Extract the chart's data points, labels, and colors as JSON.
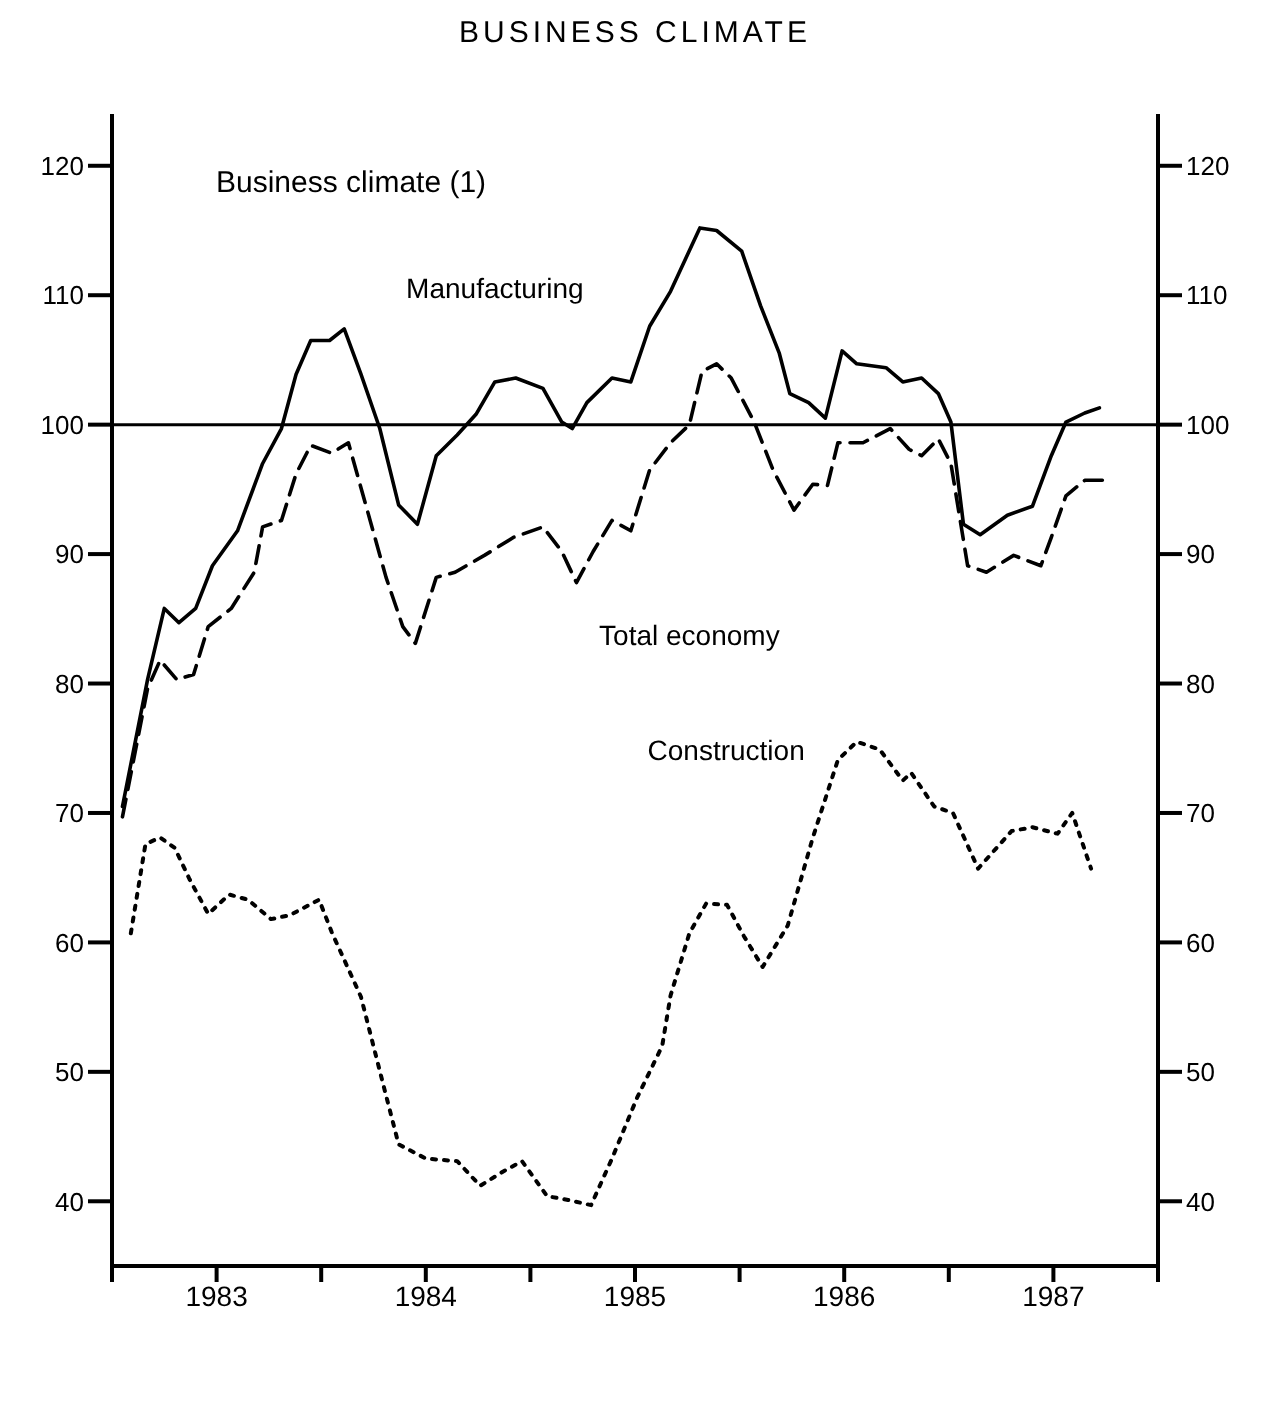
{
  "chart_data": {
    "type": "line",
    "title": "BUSINESS CLIMATE",
    "subtitle": "Business climate (1)",
    "xlim": [
      1983,
      1988
    ],
    "xticks": [
      {
        "value": 1983,
        "label": null
      },
      {
        "value": 1983.5,
        "label": "1983"
      },
      {
        "value": 1984,
        "label": null
      },
      {
        "value": 1984.5,
        "label": "1984"
      },
      {
        "value": 1985,
        "label": null
      },
      {
        "value": 1985.5,
        "label": "1985"
      },
      {
        "value": 1986,
        "label": null
      },
      {
        "value": 1986.5,
        "label": "1986"
      },
      {
        "value": 1987,
        "label": null
      },
      {
        "value": 1987.5,
        "label": "1987"
      },
      {
        "value": 1988,
        "label": null
      }
    ],
    "ylim": [
      35,
      124
    ],
    "yticks": [
      40,
      50,
      60,
      70,
      80,
      90,
      100,
      110,
      120
    ],
    "y2lim": [
      35,
      124
    ],
    "y2ticks": [
      40,
      50,
      60,
      70,
      80,
      90,
      100,
      110,
      120
    ],
    "grid": false,
    "marker": "none",
    "ref_lines": [
      {
        "axis": "y",
        "value": 100,
        "color": "#000000",
        "line_style": "solid"
      }
    ],
    "series": [
      {
        "name": "Manufacturing",
        "color": "#000000",
        "line_style": "solid",
        "x": [
          1983.05,
          1983.17,
          1983.25,
          1983.32,
          1983.4,
          1983.48,
          1983.6,
          1983.72,
          1983.81,
          1983.88,
          1983.95,
          1984.04,
          1984.11,
          1984.19,
          1984.28,
          1984.37,
          1984.46,
          1984.55,
          1984.65,
          1984.74,
          1984.83,
          1984.93,
          1985.06,
          1985.15,
          1985.2,
          1985.27,
          1985.39,
          1985.48,
          1985.57,
          1985.67,
          1985.81,
          1985.89,
          1986.01,
          1986.1,
          1986.19,
          1986.24,
          1986.33,
          1986.41,
          1986.49,
          1986.56,
          1986.7,
          1986.78,
          1986.87,
          1986.95,
          1987.01,
          1987.07,
          1987.15,
          1987.28,
          1987.4,
          1987.49,
          1987.56,
          1987.65,
          1987.72
        ],
        "values": [
          70.5,
          80.3,
          85.8,
          84.7,
          85.8,
          89.1,
          91.8,
          97.0,
          99.7,
          103.9,
          106.5,
          106.5,
          107.4,
          103.9,
          99.7,
          93.8,
          92.3,
          97.6,
          99.2,
          100.8,
          103.3,
          103.6,
          102.8,
          100.2,
          99.7,
          101.7,
          103.6,
          103.3,
          107.6,
          110.3,
          115.2,
          115.0,
          113.4,
          109.2,
          105.5,
          102.4,
          101.7,
          100.5,
          105.7,
          104.7,
          104.4,
          103.3,
          103.6,
          102.4,
          100.2,
          92.3,
          91.5,
          93.0,
          93.7,
          97.6,
          100.2,
          100.9,
          101.3
        ]
      },
      {
        "name": "Total economy",
        "color": "#000000",
        "line_style": "dashed",
        "x": [
          1983.05,
          1983.17,
          1983.23,
          1983.31,
          1983.39,
          1983.46,
          1983.57,
          1983.68,
          1983.72,
          1983.81,
          1983.88,
          1983.95,
          1984.05,
          1984.13,
          1984.22,
          1984.31,
          1984.39,
          1984.45,
          1984.55,
          1984.64,
          1984.78,
          1984.92,
          1985.06,
          1985.15,
          1985.22,
          1985.3,
          1985.39,
          1985.48,
          1985.57,
          1985.67,
          1985.76,
          1985.82,
          1985.89,
          1985.96,
          1986.07,
          1986.16,
          1986.26,
          1986.35,
          1986.42,
          1986.47,
          1986.59,
          1986.72,
          1986.81,
          1986.87,
          1986.95,
          1987.01,
          1987.09,
          1987.18,
          1987.31,
          1987.44,
          1987.49,
          1987.56,
          1987.65,
          1987.74
        ],
        "values": [
          69.7,
          79.6,
          81.8,
          80.3,
          80.7,
          84.4,
          85.8,
          88.6,
          92.1,
          92.6,
          96.2,
          98.4,
          97.8,
          98.6,
          93.4,
          88.2,
          84.4,
          83.1,
          88.2,
          88.6,
          89.9,
          91.3,
          92.1,
          90.2,
          87.8,
          90.2,
          92.6,
          91.8,
          96.5,
          98.6,
          100.0,
          104.1,
          104.7,
          103.6,
          100.2,
          96.5,
          93.4,
          95.4,
          95.3,
          98.6,
          98.6,
          99.7,
          98.1,
          97.6,
          98.9,
          97.0,
          89.1,
          88.6,
          89.9,
          89.1,
          91.3,
          94.5,
          95.7,
          95.7
        ]
      },
      {
        "name": "Construction",
        "color": "#000000",
        "line_style": "dotted",
        "x": [
          1983.09,
          1983.16,
          1983.23,
          1983.3,
          1983.37,
          1983.46,
          1983.56,
          1983.65,
          1983.76,
          1983.85,
          1983.99,
          1984.05,
          1984.19,
          1984.3,
          1984.37,
          1984.5,
          1984.65,
          1984.76,
          1984.87,
          1984.96,
          1985.08,
          1985.18,
          1985.29,
          1985.39,
          1985.51,
          1985.63,
          1985.67,
          1985.76,
          1985.84,
          1985.94,
          1986.02,
          1986.11,
          1986.23,
          1986.35,
          1986.47,
          1986.56,
          1986.67,
          1986.78,
          1986.82,
          1986.93,
          1987.02,
          1987.14,
          1987.3,
          1987.4,
          1987.52,
          1987.59,
          1987.68
        ],
        "values": [
          60.7,
          67.6,
          68.1,
          67.3,
          64.9,
          62.2,
          63.7,
          63.3,
          61.8,
          62.1,
          63.3,
          60.8,
          55.8,
          48.8,
          44.4,
          43.3,
          43.1,
          41.2,
          42.3,
          43.1,
          40.4,
          40.1,
          39.7,
          43.3,
          48.0,
          52.0,
          55.9,
          60.7,
          63.0,
          62.9,
          60.5,
          58.1,
          61.3,
          68.1,
          74.1,
          75.5,
          74.9,
          72.5,
          73.1,
          70.5,
          70.0,
          65.7,
          68.6,
          68.9,
          68.4,
          70.0,
          65.7
        ]
      }
    ]
  }
}
